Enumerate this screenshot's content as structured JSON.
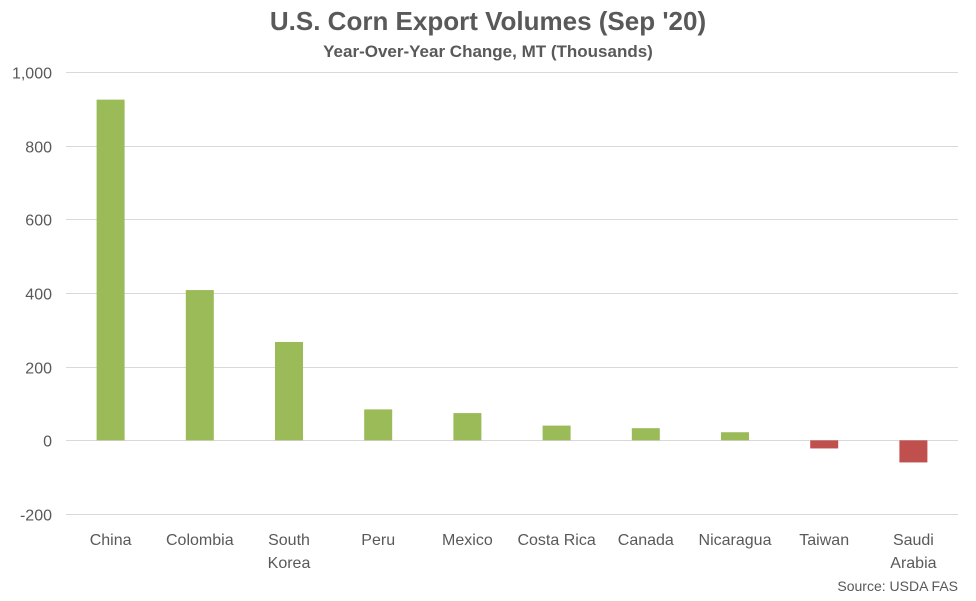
{
  "chart_data": {
    "type": "bar",
    "title": "U.S. Corn Export Volumes (Sep '20)",
    "subtitle": "Year-Over-Year Change, MT (Thousands)",
    "categories": [
      "China",
      "Colombia",
      "South Korea",
      "Peru",
      "Mexico",
      "Costa Rica",
      "Canada",
      "Nicaragua",
      "Taiwan",
      "Saudi Arabia"
    ],
    "category_lines": [
      [
        "China"
      ],
      [
        "Colombia"
      ],
      [
        "South",
        "Korea"
      ],
      [
        "Peru"
      ],
      [
        "Mexico"
      ],
      [
        "Costa Rica"
      ],
      [
        "Canada"
      ],
      [
        "Nicaragua"
      ],
      [
        "Taiwan"
      ],
      [
        "Saudi",
        "Arabia"
      ]
    ],
    "values": [
      925,
      408,
      267,
      84,
      74,
      40,
      33,
      22,
      -22,
      -60
    ],
    "ylim": [
      -200,
      1000
    ],
    "yticks": [
      -200,
      0,
      200,
      400,
      600,
      800,
      1000
    ],
    "ytick_labels": [
      "-200",
      "0",
      "200",
      "400",
      "600",
      "800",
      "1,000"
    ],
    "xlabel": "",
    "ylabel": "",
    "grid": true,
    "legend": "none",
    "colors": {
      "positive": "#9BBB59",
      "negative": "#C0504D",
      "gridline": "#D9D9D9",
      "zero_line": "#D9D9D9",
      "text": "#595959"
    }
  },
  "source": "Source: USDA FAS"
}
